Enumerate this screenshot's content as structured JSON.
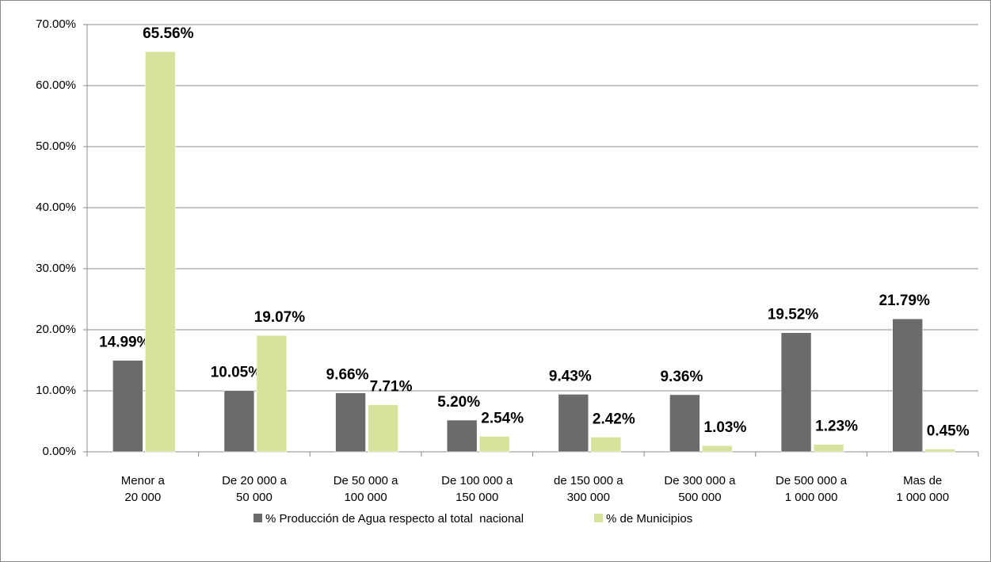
{
  "chart_data": {
    "type": "bar",
    "categories": [
      [
        "Menor a",
        "20 000"
      ],
      [
        "De 20 000 a",
        "50 000"
      ],
      [
        "De 50 000 a",
        "100 000"
      ],
      [
        "De 100 000 a",
        "150 000"
      ],
      [
        "de 150 000 a",
        "300 000"
      ],
      [
        "De 300 000 a",
        "500 000"
      ],
      [
        "De 500 000 a",
        "1 000 000"
      ],
      [
        "Mas de",
        "1 000 000"
      ]
    ],
    "series": [
      {
        "name": "% Producción de Agua respecto al total  nacional",
        "color": "#6b6b6b",
        "values": [
          14.99,
          10.05,
          9.66,
          5.2,
          9.43,
          9.36,
          19.52,
          21.79
        ],
        "value_labels": [
          "14.99%",
          "10.05%",
          "9.66%",
          "5.20%",
          "9.43%",
          "9.36%",
          "19.52%",
          "21.79%"
        ]
      },
      {
        "name": "% de Municipios",
        "color": "#d6e39c",
        "values": [
          65.56,
          19.07,
          7.71,
          2.54,
          2.42,
          1.03,
          1.23,
          0.45
        ],
        "value_labels": [
          "65.56%",
          "19.07%",
          "7.71%",
          "2.54%",
          "2.42%",
          "1.03%",
          "1.23%",
          "0.45%"
        ]
      }
    ],
    "ylim": [
      0,
      70
    ],
    "yticks": [
      {
        "value": 0,
        "label": "0.00%"
      },
      {
        "value": 10,
        "label": "10.00%"
      },
      {
        "value": 20,
        "label": "20.00%"
      },
      {
        "value": 30,
        "label": "30.00%"
      },
      {
        "value": 40,
        "label": "40.00%"
      },
      {
        "value": 50,
        "label": "50.00%"
      },
      {
        "value": 60,
        "label": "60.00%"
      },
      {
        "value": 70,
        "label": "70.00%"
      }
    ],
    "grid": true,
    "legend": "bottom"
  }
}
